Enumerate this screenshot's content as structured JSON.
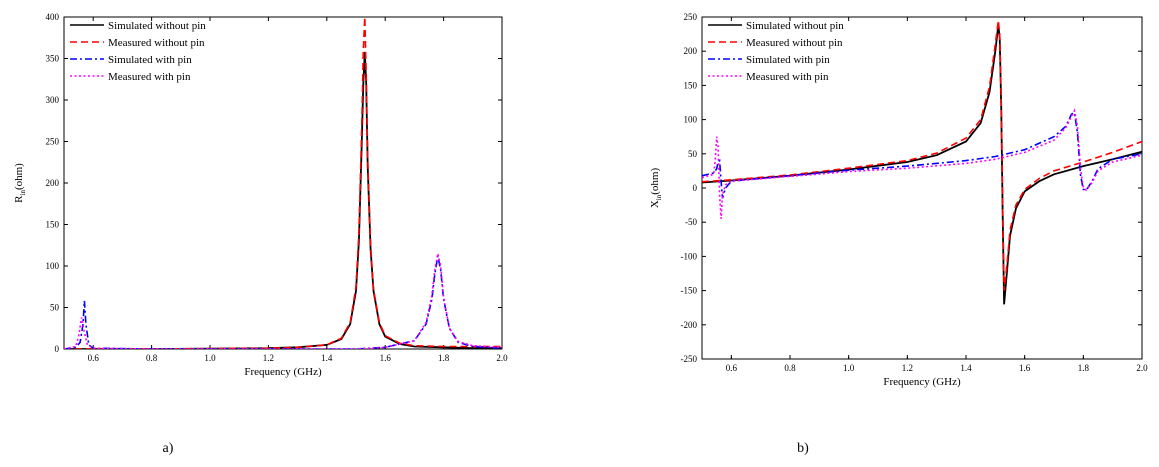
{
  "colors": {
    "sim_no_pin": "#000000",
    "meas_no_pin": "#ff0000",
    "sim_pin": "#0000ff",
    "meas_pin": "#ff00ff"
  },
  "chart_data": [
    {
      "type": "line",
      "xlabel": "Frequency (GHz)",
      "ylabel_main": "R",
      "ylabel_sub": "in",
      "ylabel_rest": "(ohm)",
      "xlim": [
        0.5,
        2.0
      ],
      "ylim": [
        0,
        400
      ],
      "xticks": [
        0.6,
        0.8,
        1.0,
        1.2,
        1.4,
        1.6,
        1.8,
        2.0
      ],
      "xtick_labels": [
        "0.6",
        "0.8",
        "1.0",
        "1.2",
        "1.4",
        "1.6",
        "1.8",
        "2.0"
      ],
      "yticks": [
        0,
        50,
        100,
        150,
        200,
        250,
        300,
        350,
        400
      ],
      "ytick_labels": [
        "0",
        "50",
        "100",
        "150",
        "200",
        "250",
        "300",
        "350",
        "400"
      ],
      "legend_position": "top-left",
      "caption": "a)",
      "series": [
        {
          "name": "Simulated without pin",
          "style": "solid",
          "color_key": "sim_no_pin",
          "x": [
            0.5,
            0.8,
            1.0,
            1.2,
            1.3,
            1.4,
            1.45,
            1.48,
            1.5,
            1.51,
            1.52,
            1.525,
            1.53,
            1.535,
            1.54,
            1.55,
            1.56,
            1.58,
            1.6,
            1.65,
            1.7,
            1.8,
            1.9,
            2.0
          ],
          "y": [
            0,
            0,
            0.5,
            1,
            2,
            5,
            12,
            30,
            70,
            130,
            250,
            320,
            358,
            320,
            220,
            120,
            70,
            30,
            15,
            6,
            3,
            2,
            1,
            1
          ]
        },
        {
          "name": "Measured without pin",
          "style": "dash",
          "color_key": "meas_no_pin",
          "x": [
            0.5,
            0.8,
            1.0,
            1.2,
            1.3,
            1.4,
            1.45,
            1.48,
            1.5,
            1.51,
            1.52,
            1.525,
            1.53,
            1.535,
            1.54,
            1.55,
            1.56,
            1.58,
            1.6,
            1.65,
            1.7,
            1.8,
            1.9,
            2.0
          ],
          "y": [
            0,
            0,
            0.5,
            1,
            2,
            5,
            13,
            32,
            75,
            140,
            270,
            360,
            400,
            330,
            230,
            125,
            72,
            32,
            16,
            7,
            4,
            3,
            3,
            3
          ]
        },
        {
          "name": "Simulated with pin",
          "style": "dashdot",
          "color_key": "sim_pin",
          "x": [
            0.5,
            0.54,
            0.555,
            0.565,
            0.57,
            0.575,
            0.585,
            0.6,
            0.8,
            1.2,
            1.5,
            1.6,
            1.7,
            1.74,
            1.76,
            1.77,
            1.78,
            1.79,
            1.8,
            1.82,
            1.85,
            1.9,
            2.0
          ],
          "y": [
            0,
            2,
            8,
            30,
            58,
            30,
            5,
            1,
            0,
            0,
            0,
            2,
            10,
            30,
            60,
            90,
            112,
            95,
            60,
            25,
            8,
            3,
            1
          ]
        },
        {
          "name": "Measured with pin",
          "style": "dot",
          "color_key": "meas_pin",
          "x": [
            0.5,
            0.54,
            0.55,
            0.56,
            0.57,
            0.58,
            0.6,
            0.8,
            1.2,
            1.5,
            1.6,
            1.7,
            1.74,
            1.76,
            1.77,
            1.78,
            1.79,
            1.8,
            1.82,
            1.85,
            1.9,
            2.0
          ],
          "y": [
            0,
            3,
            15,
            38,
            20,
            5,
            1,
            0,
            0,
            0,
            2,
            10,
            32,
            65,
            95,
            115,
            100,
            62,
            25,
            9,
            4,
            2
          ]
        }
      ]
    },
    {
      "type": "line",
      "xlabel": "Frequency (GHz)",
      "ylabel_main": "X",
      "ylabel_sub": "in",
      "ylabel_rest": "(ohm)",
      "xlim": [
        0.5,
        2.0
      ],
      "ylim": [
        -250,
        250
      ],
      "xticks": [
        0.6,
        0.8,
        1.0,
        1.2,
        1.4,
        1.6,
        1.8,
        2.0
      ],
      "xtick_labels": [
        "0.6",
        "0.8",
        "1.0",
        "1.2",
        "1.4",
        "1.6",
        "1.8",
        "2.0"
      ],
      "yticks": [
        -250,
        -200,
        -150,
        -100,
        -50,
        0,
        50,
        100,
        150,
        200,
        250
      ],
      "ytick_labels": [
        "-250",
        "-200",
        "-150",
        "-100",
        "-50",
        "0",
        "50",
        "100",
        "150",
        "200",
        "250"
      ],
      "legend_position": "top-left",
      "caption": "b)",
      "series": [
        {
          "name": "Simulated without pin",
          "style": "solid",
          "color_key": "sim_no_pin",
          "x": [
            0.5,
            0.6,
            0.8,
            1.0,
            1.2,
            1.3,
            1.4,
            1.45,
            1.48,
            1.5,
            1.51,
            1.515,
            1.52,
            1.525,
            1.53,
            1.54,
            1.55,
            1.57,
            1.6,
            1.65,
            1.7,
            1.8,
            1.9,
            2.0
          ],
          "y": [
            8,
            11,
            18,
            27,
            38,
            48,
            68,
            95,
            140,
            200,
            238,
            220,
            120,
            -40,
            -170,
            -120,
            -70,
            -30,
            -5,
            10,
            20,
            32,
            42,
            53
          ]
        },
        {
          "name": "Measured without pin",
          "style": "dash",
          "color_key": "meas_no_pin",
          "x": [
            0.5,
            0.6,
            0.8,
            1.0,
            1.2,
            1.3,
            1.4,
            1.45,
            1.48,
            1.5,
            1.51,
            1.515,
            1.52,
            1.525,
            1.53,
            1.54,
            1.55,
            1.57,
            1.6,
            1.65,
            1.7,
            1.8,
            1.9,
            2.0
          ],
          "y": [
            9,
            12,
            19,
            29,
            40,
            51,
            73,
            100,
            148,
            210,
            245,
            225,
            130,
            -30,
            -150,
            -110,
            -62,
            -25,
            -2,
            14,
            25,
            38,
            52,
            68
          ]
        },
        {
          "name": "Simulated with pin",
          "style": "dashdot",
          "color_key": "sim_pin",
          "x": [
            0.5,
            0.54,
            0.55,
            0.555,
            0.56,
            0.565,
            0.57,
            0.58,
            0.6,
            0.8,
            1.0,
            1.2,
            1.4,
            1.5,
            1.6,
            1.7,
            1.74,
            1.76,
            1.77,
            1.78,
            1.79,
            1.8,
            1.81,
            1.83,
            1.85,
            1.9,
            2.0
          ],
          "y": [
            18,
            22,
            28,
            38,
            40,
            10,
            -15,
            0,
            10,
            18,
            26,
            32,
            40,
            46,
            56,
            75,
            90,
            108,
            110,
            80,
            20,
            -2,
            -3,
            10,
            28,
            42,
            50
          ]
        },
        {
          "name": "Measured with pin",
          "style": "dot",
          "color_key": "meas_pin",
          "x": [
            0.5,
            0.54,
            0.545,
            0.55,
            0.555,
            0.56,
            0.565,
            0.57,
            0.58,
            0.6,
            0.8,
            1.0,
            1.2,
            1.4,
            1.5,
            1.6,
            1.7,
            1.74,
            1.76,
            1.77,
            1.78,
            1.79,
            1.8,
            1.81,
            1.83,
            1.85,
            1.9,
            2.0
          ],
          "y": [
            15,
            20,
            40,
            75,
            60,
            -10,
            -45,
            -10,
            5,
            10,
            17,
            24,
            29,
            36,
            42,
            52,
            70,
            88,
            105,
            113,
            90,
            30,
            0,
            -3,
            8,
            25,
            38,
            48
          ]
        }
      ]
    }
  ]
}
